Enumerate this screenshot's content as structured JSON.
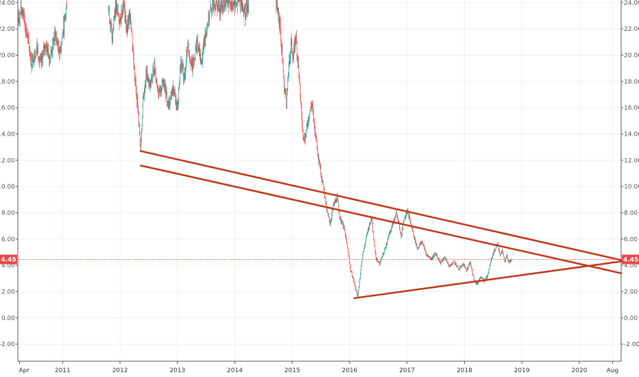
{
  "chart_data": {
    "type": "candlestick",
    "y_ticks": [
      "24.00",
      "22.00",
      "20.00",
      "18.00",
      "16.00",
      "14.00",
      "12.00",
      "10.00",
      "8.00",
      "6.00",
      "4.00",
      "2.00",
      "0.00",
      "-2.00"
    ],
    "y_tick_values": [
      24,
      22,
      20,
      18,
      16,
      14,
      12,
      10,
      8,
      6,
      4,
      2,
      0,
      -2
    ],
    "ylim": [
      -3.3,
      24.2
    ],
    "x_ticks": [
      {
        "label": "Apr",
        "date": 2010.25
      },
      {
        "label": "2011",
        "date": 2011.0
      },
      {
        "label": "2012",
        "date": 2012.0
      },
      {
        "label": "2013",
        "date": 2013.0
      },
      {
        "label": "2014",
        "date": 2014.0
      },
      {
        "label": "2015",
        "date": 2015.0
      },
      {
        "label": "2016",
        "date": 2016.0
      },
      {
        "label": "2017",
        "date": 2017.0
      },
      {
        "label": "2018",
        "date": 2018.0
      },
      {
        "label": "2019",
        "date": 2019.0
      },
      {
        "label": "2020",
        "date": 2020.0
      },
      {
        "label": "Aug",
        "date": 2020.58
      }
    ],
    "xlim": [
      2010.22,
      2020.73
    ],
    "current_price": {
      "value": 4.45,
      "label": "4.45"
    },
    "price_path": [
      [
        2010.22,
        22.5
      ],
      [
        2010.3,
        23.6
      ],
      [
        2010.38,
        21.5
      ],
      [
        2010.46,
        19.4
      ],
      [
        2010.55,
        20.6
      ],
      [
        2010.62,
        19.3
      ],
      [
        2010.7,
        20.9
      ],
      [
        2010.78,
        19.8
      ],
      [
        2010.87,
        21.6
      ],
      [
        2010.95,
        20.2
      ],
      [
        2011.03,
        22.4
      ],
      [
        2011.08,
        24.2
      ],
      [
        2011.8,
        23.5
      ],
      [
        2011.86,
        21.3
      ],
      [
        2011.92,
        23.9
      ],
      [
        2012.0,
        22.5
      ],
      [
        2012.06,
        24.1
      ],
      [
        2012.12,
        21.8
      ],
      [
        2012.18,
        23.2
      ],
      [
        2012.24,
        19.5
      ],
      [
        2012.28,
        17.2
      ],
      [
        2012.32,
        15.6
      ],
      [
        2012.36,
        12.8
      ],
      [
        2012.4,
        16.4
      ],
      [
        2012.46,
        18.6
      ],
      [
        2012.52,
        17.6
      ],
      [
        2012.6,
        19.1
      ],
      [
        2012.68,
        16.9
      ],
      [
        2012.76,
        18.2
      ],
      [
        2012.84,
        16.1
      ],
      [
        2012.92,
        17.4
      ],
      [
        2013.0,
        16.0
      ],
      [
        2013.06,
        19.5
      ],
      [
        2013.12,
        18.2
      ],
      [
        2013.18,
        20.9
      ],
      [
        2013.26,
        19.0
      ],
      [
        2013.34,
        21.0
      ],
      [
        2013.42,
        19.4
      ],
      [
        2013.48,
        21.5
      ],
      [
        2013.56,
        23.1
      ],
      [
        2013.62,
        24.2
      ],
      [
        2013.74,
        23.6
      ],
      [
        2013.86,
        24.2
      ],
      [
        2014.0,
        23.9
      ],
      [
        2014.1,
        24.1
      ],
      [
        2014.18,
        23.2
      ],
      [
        2014.24,
        24.2
      ],
      [
        2014.72,
        24.2
      ],
      [
        2014.78,
        22.6
      ],
      [
        2014.82,
        20.3
      ],
      [
        2014.86,
        17.6
      ],
      [
        2014.9,
        16.5
      ],
      [
        2014.94,
        19.0
      ],
      [
        2014.98,
        21.0
      ],
      [
        2015.02,
        19.8
      ],
      [
        2015.06,
        21.5
      ],
      [
        2015.1,
        19.6
      ],
      [
        2015.14,
        17.0
      ],
      [
        2015.18,
        14.2
      ],
      [
        2015.22,
        13.6
      ],
      [
        2015.28,
        15.2
      ],
      [
        2015.34,
        16.3
      ],
      [
        2015.4,
        14.2
      ],
      [
        2015.46,
        12.2
      ],
      [
        2015.52,
        10.5
      ],
      [
        2015.56,
        9.6
      ],
      [
        2015.6,
        8.2
      ],
      [
        2015.66,
        7.2
      ],
      [
        2015.72,
        8.6
      ],
      [
        2015.78,
        9.1
      ],
      [
        2015.84,
        7.5
      ],
      [
        2015.9,
        6.9
      ],
      [
        2015.96,
        5.4
      ],
      [
        2016.02,
        3.6
      ],
      [
        2016.06,
        3.0
      ],
      [
        2016.1,
        2.3
      ],
      [
        2016.14,
        1.6
      ],
      [
        2016.18,
        3.1
      ],
      [
        2016.22,
        4.6
      ],
      [
        2016.28,
        5.9
      ],
      [
        2016.32,
        6.7
      ],
      [
        2016.38,
        7.6
      ],
      [
        2016.42,
        6.0
      ],
      [
        2016.46,
        4.5
      ],
      [
        2016.52,
        4.1
      ],
      [
        2016.58,
        4.8
      ],
      [
        2016.64,
        5.6
      ],
      [
        2016.7,
        6.5
      ],
      [
        2016.76,
        7.3
      ],
      [
        2016.82,
        8.0
      ],
      [
        2016.86,
        7.1
      ],
      [
        2016.9,
        6.2
      ],
      [
        2016.94,
        7.4
      ],
      [
        2017.0,
        8.2
      ],
      [
        2017.06,
        7.3
      ],
      [
        2017.12,
        6.2
      ],
      [
        2017.18,
        5.3
      ],
      [
        2017.26,
        5.8
      ],
      [
        2017.34,
        4.8
      ],
      [
        2017.42,
        4.5
      ],
      [
        2017.5,
        4.9
      ],
      [
        2017.58,
        4.2
      ],
      [
        2017.66,
        4.6
      ],
      [
        2017.74,
        3.9
      ],
      [
        2017.82,
        4.3
      ],
      [
        2017.9,
        3.7
      ],
      [
        2017.98,
        4.1
      ],
      [
        2018.04,
        3.6
      ],
      [
        2018.1,
        4.2
      ],
      [
        2018.14,
        3.4
      ],
      [
        2018.18,
        2.8
      ],
      [
        2018.22,
        2.6
      ],
      [
        2018.28,
        3.1
      ],
      [
        2018.34,
        2.8
      ],
      [
        2018.4,
        3.2
      ],
      [
        2018.46,
        4.4
      ],
      [
        2018.52,
        5.1
      ],
      [
        2018.58,
        5.6
      ],
      [
        2018.62,
        4.8
      ],
      [
        2018.66,
        5.1
      ],
      [
        2018.7,
        4.3
      ],
      [
        2018.74,
        4.7
      ],
      [
        2018.78,
        4.2
      ],
      [
        2018.82,
        4.5
      ]
    ],
    "trend_lines": [
      {
        "from": [
          2012.36,
          12.7
        ],
        "to": [
          2020.73,
          4.4
        ]
      },
      {
        "from": [
          2012.36,
          11.6
        ],
        "to": [
          2020.73,
          3.4
        ]
      },
      {
        "from": [
          2016.08,
          1.5
        ],
        "to": [
          2020.73,
          4.3
        ]
      }
    ],
    "colors": {
      "up": "#26a69a",
      "down": "#ef5350",
      "trend_line": "#c0391b",
      "price_label_bg": "#e84a4a",
      "grid": "#eef0f4",
      "axis": "#555555"
    },
    "grid": true
  }
}
